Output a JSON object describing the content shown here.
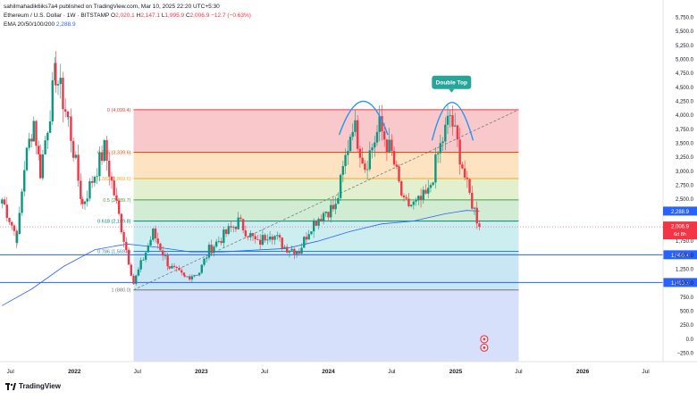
{
  "header": {
    "publisher_line": "sahilmahadik6iks7a4 published on TradingView.com, Mar 10, 2025 22:20 UTC+5:30",
    "symbol": "Ethereum / U.S. Dollar · 1W · BITSTAMP",
    "ohlc": {
      "o_label": "O",
      "o": "2,020.1",
      "h_label": "H",
      "h": "2,147.1",
      "l_label": "L",
      "l": "1,995.9",
      "c_label": "C",
      "c": "2,006.9",
      "change": "−12.7 (−0.63%)"
    },
    "ema_label": "EMA 20/50/100/200",
    "ema_value": "2,288.9"
  },
  "brand": "TradingView",
  "colors": {
    "up": "#089981",
    "down": "#f23645",
    "ema": "#2962ff",
    "support": "#2962ff",
    "annotation": "#2196f3",
    "badge": "#26a69a"
  },
  "chart_data": {
    "type": "candlestick",
    "y_axis_ticks": [
      "5,750.0",
      "5,500.0",
      "5,250.0",
      "5,000.0",
      "4,750.0",
      "4,500.0",
      "4,250.0",
      "4,000.0",
      "3,750.0",
      "3,500.0",
      "3,250.0",
      "3,000.0",
      "2,750.0",
      "2,500.0",
      "2,250.0",
      "2,000.0",
      "1,750.0",
      "1,500.0",
      "1,250.0",
      "1,000.0",
      "750.0",
      "500.0",
      "250.0",
      "0.0",
      "−250.0"
    ],
    "ylim": [
      -400,
      5900
    ],
    "x_axis_ticks": [
      {
        "label": "Jul",
        "date": "2021-07-01"
      },
      {
        "label": "2022",
        "date": "2022-01-01"
      },
      {
        "label": "Jul",
        "date": "2022-07-01"
      },
      {
        "label": "2023",
        "date": "2023-01-01"
      },
      {
        "label": "Jul",
        "date": "2023-07-01"
      },
      {
        "label": "2024",
        "date": "2024-01-01"
      },
      {
        "label": "Jul",
        "date": "2024-07-01"
      },
      {
        "label": "2025",
        "date": "2025-01-01"
      },
      {
        "label": "Jul",
        "date": "2025-07-01"
      },
      {
        "label": "2026",
        "date": "2026-01-01"
      },
      {
        "label": "Jul",
        "date": "2026-07-01"
      }
    ],
    "xlim": [
      "2021-06-01",
      "2026-08-20"
    ],
    "fibonacci": {
      "start": "2022-06-20",
      "end": "2025-07-01",
      "levels": [
        {
          "ratio": "0",
          "price": 4099.4,
          "label": "0 (4,099.4)",
          "color": "#f23645",
          "band": "#f8c8cb"
        },
        {
          "ratio": "0.236",
          "price": 3339.6,
          "label": "0.236 (3,339.6)",
          "color": "#e65100",
          "band": "#fde3c1"
        },
        {
          "ratio": "0.382",
          "price": 2869.6,
          "label": "0.382 (2,869.6)",
          "color": "#f9a825",
          "band": "#e3f0cf"
        },
        {
          "ratio": "0.5",
          "price": 2489.7,
          "label": "0.5 (2,489.7)",
          "color": "#43a047",
          "band": "#d1ecd2"
        },
        {
          "ratio": "0.618",
          "price": 2109.8,
          "label": "0.618 (2,109.8)",
          "color": "#00897b",
          "band": "#cdeef0"
        },
        {
          "ratio": "0.786",
          "price": 1569.4,
          "label": "0.786 (1,569.4)",
          "color": "#1e88e5",
          "band": "#c9e6f5"
        },
        {
          "ratio": "1",
          "price": 880.0,
          "label": "1 (880.0)",
          "color": "#757575",
          "band": "#e3e3e3"
        }
      ],
      "below_band": "#d6e0fb"
    },
    "support_lines": [
      {
        "price": 1508.4,
        "label": "1,508.4"
      },
      {
        "price": 1013.3,
        "label": "1,013.3"
      }
    ],
    "trendline": {
      "from": {
        "date": "2022-06-20",
        "price": 880
      },
      "to": {
        "date": "2025-07-01",
        "price": 4099
      }
    },
    "annotation": {
      "text": "Double Top"
    },
    "tops": [
      {
        "from": "2024-02-01",
        "peak_date": "2024-04-10",
        "to": "2024-06-20",
        "base": 3650,
        "peak": 4250
      },
      {
        "from": "2024-10-25",
        "peak_date": "2024-12-20",
        "to": "2025-02-20",
        "base": 3550,
        "peak": 4230
      }
    ],
    "price_labels": [
      {
        "price": 2288.9,
        "label": "2,288.9",
        "color": "#2962ff",
        "kind": "ema"
      },
      {
        "price": 2006.9,
        "label": "2,006.9",
        "sub": "6d 8h",
        "color": "#f23645",
        "kind": "last"
      }
    ],
    "ema_path": [
      {
        "date": "2021-06-07",
        "price": 600
      },
      {
        "date": "2021-09-01",
        "price": 900
      },
      {
        "date": "2021-12-01",
        "price": 1300
      },
      {
        "date": "2022-03-01",
        "price": 1600
      },
      {
        "date": "2022-06-01",
        "price": 1700
      },
      {
        "date": "2022-09-01",
        "price": 1640
      },
      {
        "date": "2022-12-01",
        "price": 1560
      },
      {
        "date": "2023-03-01",
        "price": 1560
      },
      {
        "date": "2023-06-01",
        "price": 1590
      },
      {
        "date": "2023-09-01",
        "price": 1620
      },
      {
        "date": "2023-12-01",
        "price": 1750
      },
      {
        "date": "2024-03-01",
        "price": 1920
      },
      {
        "date": "2024-06-01",
        "price": 2060
      },
      {
        "date": "2024-09-01",
        "price": 2110
      },
      {
        "date": "2024-12-01",
        "price": 2240
      },
      {
        "date": "2025-02-01",
        "price": 2300
      },
      {
        "date": "2025-03-10",
        "price": 2289
      }
    ],
    "candle_anchors": [
      [
        "2021-06-07",
        2500
      ],
      [
        "2021-07-20",
        1800
      ],
      [
        "2021-08-10",
        3100
      ],
      [
        "2021-09-06",
        3900
      ],
      [
        "2021-09-25",
        3000
      ],
      [
        "2021-11-08",
        4750
      ],
      [
        "2021-12-15",
        3900
      ],
      [
        "2022-01-24",
        2400
      ],
      [
        "2022-03-28",
        3400
      ],
      [
        "2022-05-16",
        2000
      ],
      [
        "2022-06-20",
        1000
      ],
      [
        "2022-08-15",
        1900
      ],
      [
        "2022-10-01",
        1300
      ],
      [
        "2022-11-14",
        1100
      ],
      [
        "2022-12-26",
        1200
      ],
      [
        "2023-01-23",
        1600
      ],
      [
        "2023-04-17",
        2100
      ],
      [
        "2023-06-12",
        1700
      ],
      [
        "2023-07-17",
        1930
      ],
      [
        "2023-08-28",
        1650
      ],
      [
        "2023-10-09",
        1580
      ],
      [
        "2023-11-13",
        2050
      ],
      [
        "2023-12-25",
        2300
      ],
      [
        "2024-01-22",
        2350
      ],
      [
        "2024-03-11",
        3900
      ],
      [
        "2024-04-15",
        3100
      ],
      [
        "2024-05-27",
        3800
      ],
      [
        "2024-07-01",
        3300
      ],
      [
        "2024-08-05",
        2400
      ],
      [
        "2024-09-09",
        2400
      ],
      [
        "2024-10-14",
        2600
      ],
      [
        "2024-11-11",
        3300
      ],
      [
        "2024-12-16",
        4000
      ],
      [
        "2025-01-13",
        3300
      ],
      [
        "2025-02-03",
        2700
      ],
      [
        "2025-02-24",
        2300
      ],
      [
        "2025-03-10",
        2006.9
      ]
    ],
    "event_icons": [
      {
        "date": "2025-03-24",
        "price": 0
      },
      {
        "date": "2025-03-24",
        "price": -150
      }
    ]
  }
}
